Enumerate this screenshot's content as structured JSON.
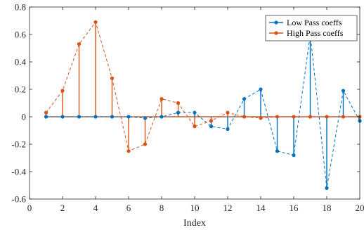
{
  "chart_data": {
    "type": "line",
    "subtype": "stem-with-dashed-connector",
    "title": "",
    "xlabel": "Index",
    "ylabel": "",
    "xlim": [
      0,
      20
    ],
    "ylim": [
      -0.6,
      0.8
    ],
    "xticks": [
      "0",
      "2",
      "4",
      "6",
      "8",
      "10",
      "12",
      "14",
      "16",
      "18",
      "20"
    ],
    "yticks": [
      "-0.6",
      "-0.4",
      "-0.2",
      "0",
      "0.2",
      "0.4",
      "0.6",
      "0.8"
    ],
    "grid": false,
    "legend_position": "top-right",
    "x": [
      1,
      2,
      3,
      4,
      5,
      6,
      7,
      8,
      9,
      10,
      11,
      12,
      13,
      14,
      15,
      16,
      17,
      18,
      19,
      20
    ],
    "series": [
      {
        "name": "Low Pass coeffs",
        "color": "#0072BD",
        "values": [
          0,
          0,
          0,
          0,
          0,
          0,
          -0.01,
          0,
          0.03,
          0.03,
          -0.07,
          -0.09,
          0.13,
          0.2,
          -0.25,
          -0.28,
          0.6,
          -0.52,
          0.19,
          -0.03
        ]
      },
      {
        "name": "High Pass coeffs",
        "color": "#D95319",
        "values": [
          0.03,
          0.19,
          0.53,
          0.69,
          0.28,
          -0.25,
          -0.2,
          0.13,
          0.1,
          -0.07,
          -0.03,
          0.03,
          0,
          -0.01,
          0,
          0,
          0,
          0,
          0,
          0
        ]
      }
    ]
  }
}
